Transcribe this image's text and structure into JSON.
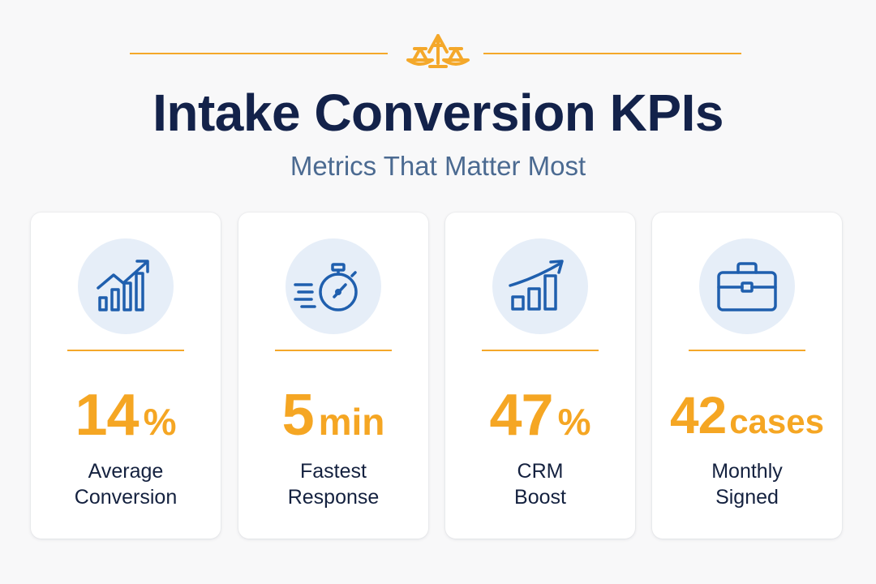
{
  "header": {
    "title": "Intake Conversion KPIs",
    "subtitle": "Metrics That Matter Most",
    "logo_icon": "scales-of-justice-icon",
    "accent_color": "#f4a82a",
    "title_color": "#13224a",
    "subtitle_color": "#4b6a91"
  },
  "cards": [
    {
      "icon": "bar-chart-trend-icon",
      "value": "14",
      "unit": "%",
      "label_line1": "Average",
      "label_line2": "Conversion"
    },
    {
      "icon": "stopwatch-icon",
      "value": "5",
      "unit": "min",
      "label_line1": "Fastest",
      "label_line2": "Response"
    },
    {
      "icon": "growth-chart-icon",
      "value": "47",
      "unit": "%",
      "label_line1": "CRM",
      "label_line2": "Boost"
    },
    {
      "icon": "briefcase-icon",
      "value": "42",
      "unit": "cases",
      "label_line1": "Monthly",
      "label_line2": "Signed"
    }
  ],
  "colors": {
    "metric": "#f5a623",
    "icon": "#1f5fae",
    "icon_bg": "#e6eef8",
    "card_bg": "#ffffff",
    "page_bg": "#f8f8f9"
  }
}
